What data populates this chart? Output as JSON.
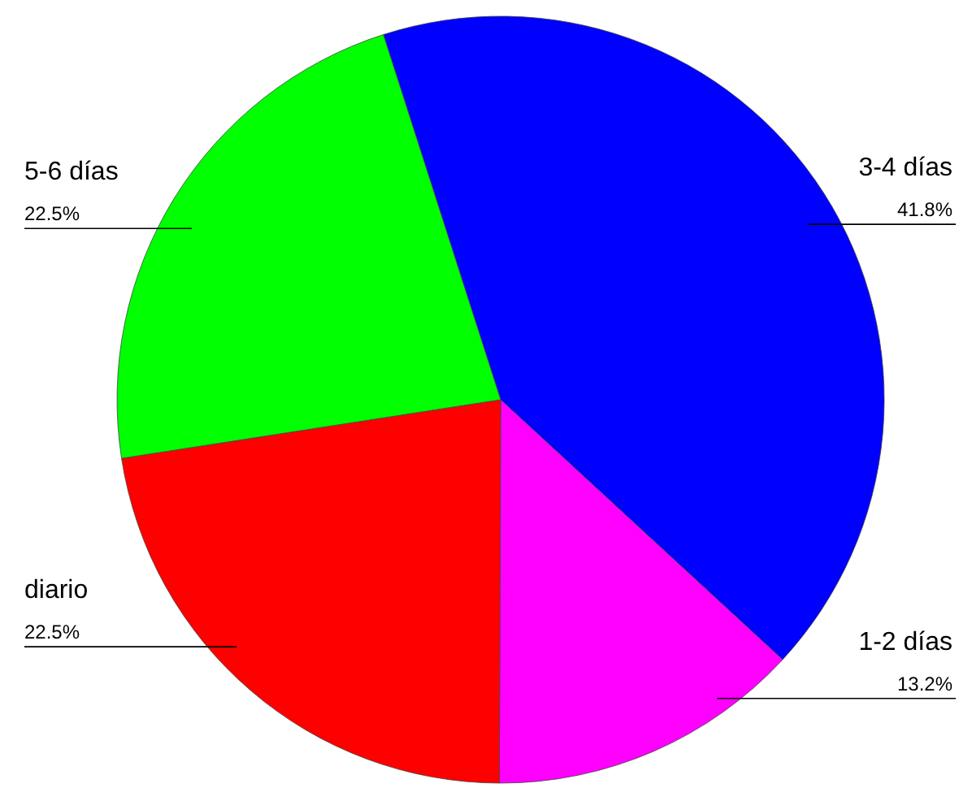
{
  "chart_data": {
    "type": "pie",
    "categories": [
      "3-4 días",
      "1-2 días",
      "diario",
      "5-6 días"
    ],
    "values": [
      41.8,
      13.2,
      22.5,
      22.5
    ],
    "colors": [
      "#0000ff",
      "#ff00ff",
      "#ff0000",
      "#00ff00"
    ],
    "value_labels": [
      "41.8%",
      "13.2%",
      "22.5%",
      "22.5%"
    ]
  }
}
